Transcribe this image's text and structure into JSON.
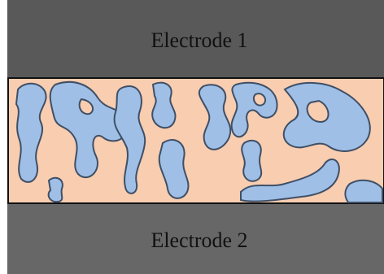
{
  "electrodes": {
    "top": "Electrode 1",
    "bottom": "Electrode 2"
  }
}
